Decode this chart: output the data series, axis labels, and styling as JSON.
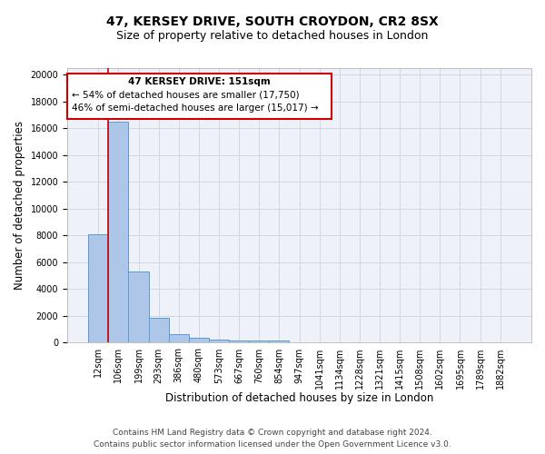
{
  "title1": "47, KERSEY DRIVE, SOUTH CROYDON, CR2 8SX",
  "title2": "Size of property relative to detached houses in London",
  "xlabel": "Distribution of detached houses by size in London",
  "ylabel": "Number of detached properties",
  "categories": [
    "12sqm",
    "106sqm",
    "199sqm",
    "293sqm",
    "386sqm",
    "480sqm",
    "573sqm",
    "667sqm",
    "760sqm",
    "854sqm",
    "947sqm",
    "1041sqm",
    "1134sqm",
    "1228sqm",
    "1321sqm",
    "1415sqm",
    "1508sqm",
    "1602sqm",
    "1695sqm",
    "1789sqm",
    "1882sqm"
  ],
  "values": [
    8100,
    16500,
    5300,
    1850,
    650,
    350,
    250,
    200,
    175,
    150,
    0,
    0,
    0,
    0,
    0,
    0,
    0,
    0,
    0,
    0,
    0
  ],
  "bar_color": "#aec6e8",
  "bar_edge_color": "#5b9bd5",
  "grid_color": "#d0d8e8",
  "bg_color": "#eef2f8",
  "annotation_box_color": "#ffffff",
  "annotation_border_color": "#cc0000",
  "vline_color": "#cc0000",
  "vline_x": 0.5,
  "annotation_title": "47 KERSEY DRIVE: 151sqm",
  "annotation_line1": "← 54% of detached houses are smaller (17,750)",
  "annotation_line2": "46% of semi-detached houses are larger (15,017) →",
  "footer1": "Contains HM Land Registry data © Crown copyright and database right 2024.",
  "footer2": "Contains public sector information licensed under the Open Government Licence v3.0.",
  "ylim": [
    0,
    20500
  ],
  "yticks": [
    0,
    2000,
    4000,
    6000,
    8000,
    10000,
    12000,
    14000,
    16000,
    18000,
    20000
  ],
  "title1_fontsize": 10,
  "title2_fontsize": 9,
  "xlabel_fontsize": 8.5,
  "ylabel_fontsize": 8.5,
  "tick_fontsize": 7,
  "annotation_fontsize": 7.5,
  "footer_fontsize": 6.5
}
